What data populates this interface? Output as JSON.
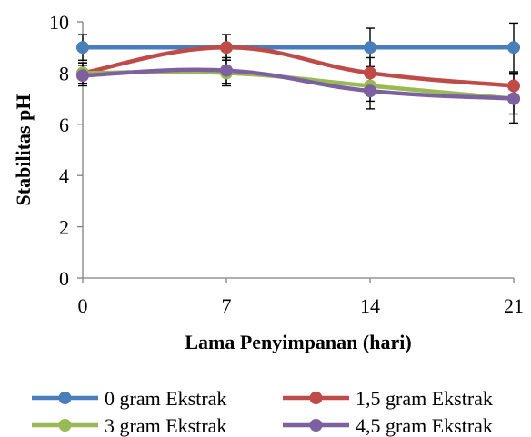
{
  "chart_data": {
    "type": "line",
    "title": "",
    "xlabel": "Lama Penyimpanan (hari)",
    "ylabel": "Stabilitas pH",
    "x": [
      0,
      7,
      14,
      21
    ],
    "x_tick_labels": [
      "0",
      "7",
      "14",
      "21"
    ],
    "ylim": [
      0,
      10
    ],
    "y_ticks": [
      0,
      2,
      4,
      6,
      8,
      10
    ],
    "y_tick_labels": [
      "0",
      "2",
      "4",
      "6",
      "8",
      "10"
    ],
    "grid": false,
    "legend_position": "bottom",
    "series": [
      {
        "name": "0 gram Ekstrak",
        "color": "#4a7ebb",
        "values": [
          9.0,
          9.0,
          9.0,
          9.0
        ],
        "error": [
          0.5,
          0.5,
          0.75,
          0.95
        ]
      },
      {
        "name": "1,5 gram Ekstrak",
        "color": "#be4b48",
        "values": [
          8.0,
          9.0,
          8.0,
          7.5
        ],
        "error": [
          0.4,
          0.5,
          0.6,
          0.5
        ]
      },
      {
        "name": "3 gram Ekstrak",
        "color": "#98b954",
        "values": [
          8.0,
          8.0,
          7.5,
          7.0
        ],
        "error": [
          0.4,
          0.5,
          0.6,
          0.6
        ]
      },
      {
        "name": "4,5 gram Ekstrak",
        "color": "#7d60a0",
        "values": [
          7.9,
          8.1,
          7.3,
          7.0
        ],
        "error": [
          0.4,
          0.5,
          0.7,
          0.95
        ]
      }
    ]
  }
}
